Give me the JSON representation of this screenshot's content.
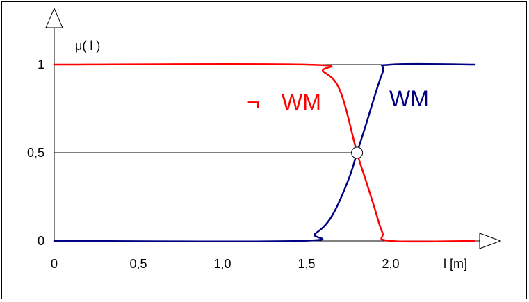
{
  "chart_data": {
    "type": "line",
    "title": "",
    "xlabel": "l [m]",
    "ylabel": "μ( l )",
    "xlim": [
      0,
      2.5
    ],
    "ylim": [
      0,
      1
    ],
    "x_ticks": [
      "0",
      "0,5",
      "1,0",
      "1,5",
      "2,0"
    ],
    "y_ticks": [
      "0",
      "0,5",
      "1"
    ],
    "grid": false,
    "series": [
      {
        "name": "WM",
        "color": "#000080",
        "x": [
          0,
          1.45,
          1.55,
          1.65,
          1.75,
          1.8,
          1.85,
          1.95,
          2.0,
          2.5
        ],
        "y": [
          0,
          0,
          0.04,
          0.14,
          0.35,
          0.5,
          0.65,
          0.95,
          1,
          1
        ]
      },
      {
        "name": "¬ WM",
        "color": "#ff0000",
        "x": [
          0,
          1.5,
          1.6,
          1.7,
          1.8,
          1.85,
          1.9,
          1.95,
          2.0,
          2.5
        ],
        "y": [
          1,
          1,
          0.96,
          0.85,
          0.5,
          0.35,
          0.2,
          0.05,
          0,
          0
        ]
      }
    ],
    "annotations": {
      "crossing": {
        "x": 1.8,
        "y": 0.5
      },
      "reference_lines": [
        {
          "y": 1,
          "x_from": 0,
          "x_to": 2.0
        },
        {
          "y": 0.5,
          "x_from": 0,
          "x_to": 1.8
        }
      ],
      "series_labels": [
        {
          "series": "¬ WM",
          "neg_mark": "¬",
          "text": "WM",
          "color": "#ff0000"
        },
        {
          "series": "WM",
          "text": "WM",
          "color": "#000080"
        }
      ]
    }
  }
}
